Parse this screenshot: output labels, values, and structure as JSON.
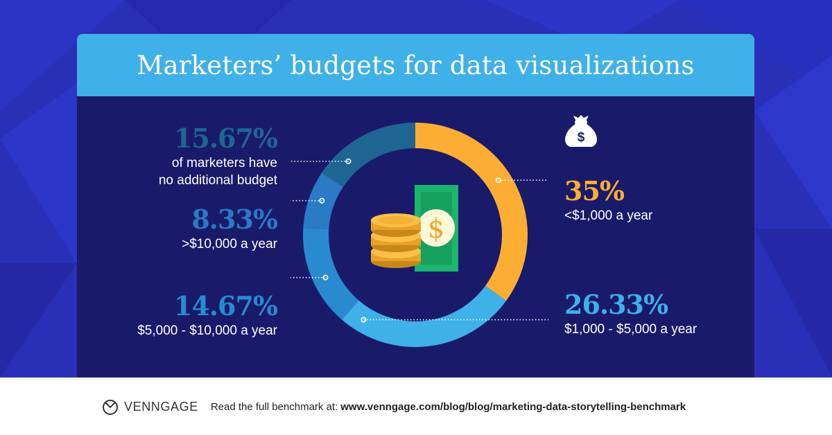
{
  "title": "Marketers’ budgets for data visualizations",
  "chart_data": {
    "type": "pie",
    "title": "Marketers’ budgets for data visualizations",
    "start_angle_deg": 0,
    "direction": "clockwise",
    "slices": [
      {
        "label": "<$1,000 a year",
        "pct_text": "35%",
        "value": 35,
        "color": "#fbae33",
        "side": "right"
      },
      {
        "label": "$1,000 - $5,000 a year",
        "pct_text": "26.33%",
        "value": 26.33,
        "color": "#3fb0e8",
        "side": "right"
      },
      {
        "label": "$5,000 - $10,000 a year",
        "pct_text": "14.67%",
        "value": 14.67,
        "color": "#2a8ad0",
        "side": "left"
      },
      {
        "label": ">$10,000 a year",
        "pct_text": "8.33%",
        "value": 8.33,
        "color": "#2a7ac4",
        "side": "left"
      },
      {
        "label": "of marketers have no additional budget",
        "pct_text": "15.67%",
        "value": 15.67,
        "color": "#1f6593",
        "side": "left"
      }
    ]
  },
  "labels": {
    "s0": {
      "pct": "35%",
      "desc": "<$1,000 a year"
    },
    "s1": {
      "pct": "26.33%",
      "desc": "$1,000 - $5,000 a year"
    },
    "s2": {
      "pct": "14.67%",
      "desc": "$5,000 - $10,000 a year"
    },
    "s3": {
      "pct": "8.33%",
      "desc": ">$10,000 a year"
    },
    "s4": {
      "pct": "15.67%",
      "line1": "of marketers have",
      "line2": "no additional budget"
    }
  },
  "icons": {
    "top_right": "money-bag-icon",
    "center": "cash-and-coins-icon"
  },
  "footer": {
    "brand": "VENNGAGE",
    "text": "Read the full benchmark at:",
    "url": "www.venngage.com/blog/blog/marketing-data-storytelling-benchmark"
  }
}
